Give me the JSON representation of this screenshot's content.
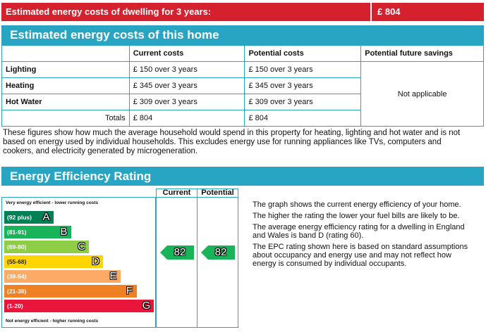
{
  "banner": {
    "label": "Estimated energy costs of dwelling for 3 years:",
    "value": "£ 804",
    "color": "#d5202d"
  },
  "costs_section": {
    "title": "Estimated energy costs of this home",
    "headers": [
      "",
      "Current costs",
      "Potential costs",
      "Potential future savings"
    ],
    "rows": [
      {
        "label": "Lighting",
        "current": "£ 150 over 3 years",
        "potential": "£ 150 over 3 years"
      },
      {
        "label": "Heating",
        "current": "£ 345 over 3 years",
        "potential": "£ 345 over 3 years"
      },
      {
        "label": "Hot Water",
        "current": "£ 309 over 3 years",
        "potential": "£ 309 over 3 years"
      }
    ],
    "savings": "Not applicable",
    "totals": {
      "label": "Totals",
      "current": "£ 804",
      "potential": "£ 804"
    },
    "accent_color": "#27a5c3"
  },
  "note": "These figures show how much the average household would spend in this property for heating, lighting and hot water and is not based on energy used by individual households. This excludes energy use for running appliances like TVs, computers and cookers, and electricity generated by microgeneration.",
  "rating_section": {
    "title": "Energy Efficiency Rating",
    "col_current": "Current",
    "col_potential": "Potential",
    "top_note": "Very energy efficient - lower running costs",
    "bottom_note": "Not energy efficient - higher running costs",
    "bands": [
      {
        "range": "(92 plus)",
        "letter": "A",
        "color": "#008054"
      },
      {
        "range": "(81-91)",
        "letter": "B",
        "color": "#19b459"
      },
      {
        "range": "(69-80)",
        "letter": "C",
        "color": "#8dce46"
      },
      {
        "range": "(55-68)",
        "letter": "D",
        "color": "#ffd500"
      },
      {
        "range": "(39-54)",
        "letter": "E",
        "color": "#fcaa65"
      },
      {
        "range": "(21-38)",
        "letter": "F",
        "color": "#ef8023"
      },
      {
        "range": "(1-20)",
        "letter": "G",
        "color": "#e9153b"
      }
    ],
    "current_rating": 82,
    "potential_rating": 82,
    "pointer_color": "#19b459"
  },
  "explanation": [
    "The graph shows the current energy efficiency of your home.",
    "The higher the rating the lower your fuel bills are likely to be.",
    "The average energy efficiency rating for a dwelling in England and Wales is band D (rating 60).",
    "The EPC rating shown here is based on standard assumptions about occupancy and energy use and may not reflect how energy is consumed by individual occupants."
  ]
}
